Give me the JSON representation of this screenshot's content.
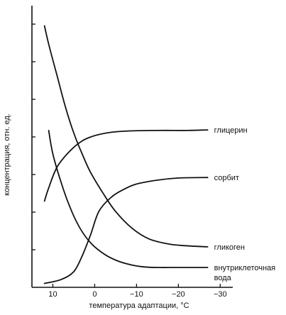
{
  "chart_data": {
    "type": "line",
    "xlabel": "температура адаптации, °C",
    "ylabel": "концентрация, отн. ед.",
    "xlim": [
      15,
      -33
    ],
    "ylim": [
      0,
      10.5
    ],
    "x_ticks": [
      10,
      0,
      -10,
      -20,
      -30
    ],
    "x_tick_labels": [
      "10",
      "0",
      "−10",
      "−20",
      "−30"
    ],
    "y_tick_count": 7,
    "grid": false,
    "series": [
      {
        "name": "глицерин",
        "label_lines": [
          "глицерин"
        ],
        "points": [
          [
            12,
            3.3
          ],
          [
            11,
            3.8
          ],
          [
            9,
            4.6
          ],
          [
            6,
            5.2
          ],
          [
            3,
            5.6
          ],
          [
            0,
            5.8
          ],
          [
            -4,
            5.93
          ],
          [
            -8,
            5.98
          ],
          [
            -15,
            6.0
          ],
          [
            -22,
            6.0
          ],
          [
            -27,
            6.02
          ]
        ]
      },
      {
        "name": "сорбит",
        "label_lines": [
          "сорбит"
        ],
        "points": [
          [
            12,
            0.15
          ],
          [
            8,
            0.3
          ],
          [
            5,
            0.6
          ],
          [
            3,
            1.2
          ],
          [
            1,
            2.0
          ],
          [
            -1,
            2.9
          ],
          [
            -4,
            3.45
          ],
          [
            -7,
            3.75
          ],
          [
            -10,
            3.95
          ],
          [
            -15,
            4.1
          ],
          [
            -20,
            4.18
          ],
          [
            -27,
            4.2
          ]
        ]
      },
      {
        "name": "гликоген",
        "label_lines": [
          "гликоген"
        ],
        "points": [
          [
            12,
            10.0
          ],
          [
            11,
            9.3
          ],
          [
            9,
            8.1
          ],
          [
            7,
            6.9
          ],
          [
            5,
            5.9
          ],
          [
            3,
            5.1
          ],
          [
            1,
            4.4
          ],
          [
            -2,
            3.6
          ],
          [
            -5,
            2.9
          ],
          [
            -9,
            2.25
          ],
          [
            -13,
            1.85
          ],
          [
            -18,
            1.65
          ],
          [
            -23,
            1.58
          ],
          [
            -27,
            1.55
          ]
        ]
      },
      {
        "name": "внутриклеточная вода",
        "label_lines": [
          "внутриклеточная",
          "вода"
        ],
        "points": [
          [
            11,
            6.0
          ],
          [
            10,
            5.1
          ],
          [
            8,
            4.0
          ],
          [
            6,
            3.1
          ],
          [
            4,
            2.4
          ],
          [
            2,
            1.9
          ],
          [
            0,
            1.55
          ],
          [
            -3,
            1.2
          ],
          [
            -6,
            0.98
          ],
          [
            -9,
            0.85
          ],
          [
            -12,
            0.78
          ],
          [
            -15,
            0.76
          ],
          [
            -20,
            0.76
          ],
          [
            -27,
            0.76
          ]
        ]
      }
    ]
  }
}
